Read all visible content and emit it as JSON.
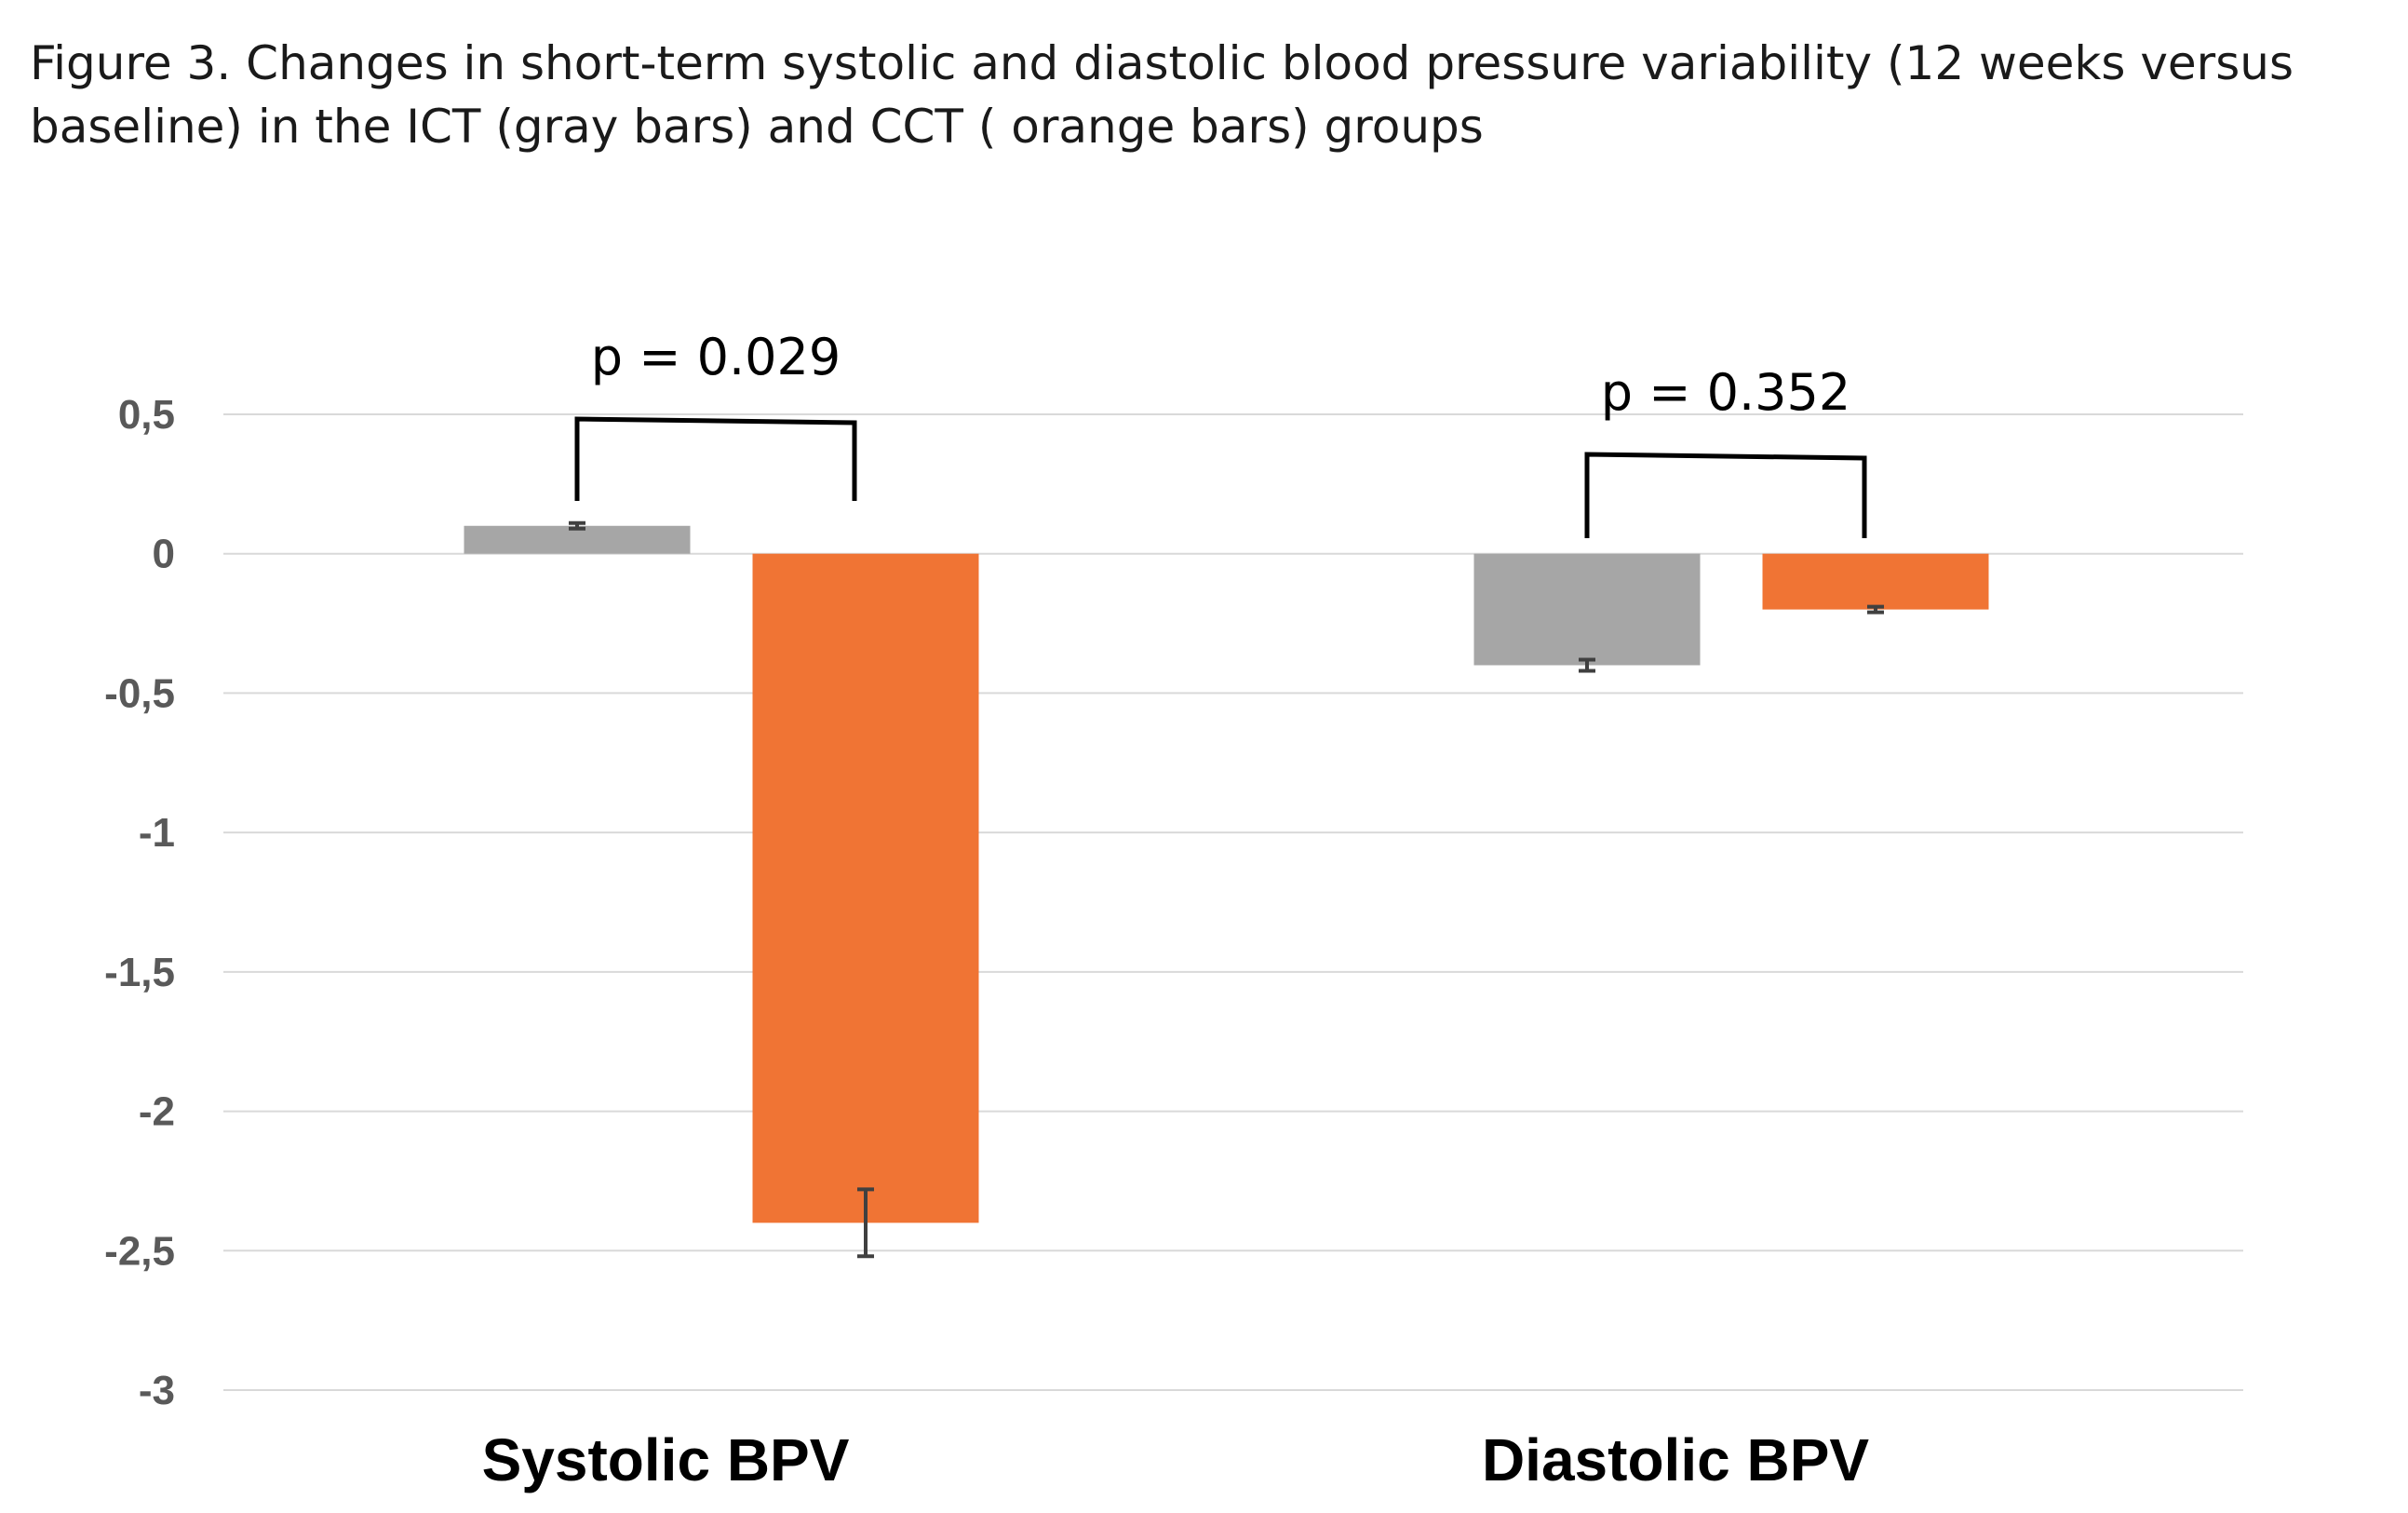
{
  "caption": "Figure 3. Changes in short-term systolic and diastolic blood pressure variability (12 weeks versus baseline) in the ICT (gray bars) and CCT  ( orange bars) groups",
  "colors": {
    "ict": "#a6a6a6",
    "cct": "#f07434",
    "grid": "#d9d9d9",
    "error_bar": "#404040",
    "bracket": "#000000"
  },
  "chart_data": {
    "type": "bar",
    "title": "",
    "xlabel": "",
    "ylabel": "",
    "ylim": [
      -3,
      0.5
    ],
    "yticks": [
      0.5,
      0,
      -0.5,
      -1,
      -1.5,
      -2,
      -2.5,
      -3
    ],
    "ytick_labels": [
      "0,5",
      "0",
      "-0,5",
      "-1",
      "-1,5",
      "-2",
      "-2,5",
      "-3"
    ],
    "grid": true,
    "categories": [
      "Systolic BPV",
      "Diastolic BPV"
    ],
    "series": [
      {
        "name": "ICT",
        "color_key": "ict",
        "values": [
          0.1,
          -0.4
        ],
        "errors": [
          0.01,
          0.02
        ]
      },
      {
        "name": "CCT",
        "color_key": "cct",
        "values": [
          -2.4,
          -0.2
        ],
        "errors": [
          0.12,
          0.01
        ]
      }
    ],
    "annotations": [
      {
        "category_index": 0,
        "text": "p = 0.029"
      },
      {
        "category_index": 1,
        "text": "p = 0.352"
      }
    ]
  }
}
